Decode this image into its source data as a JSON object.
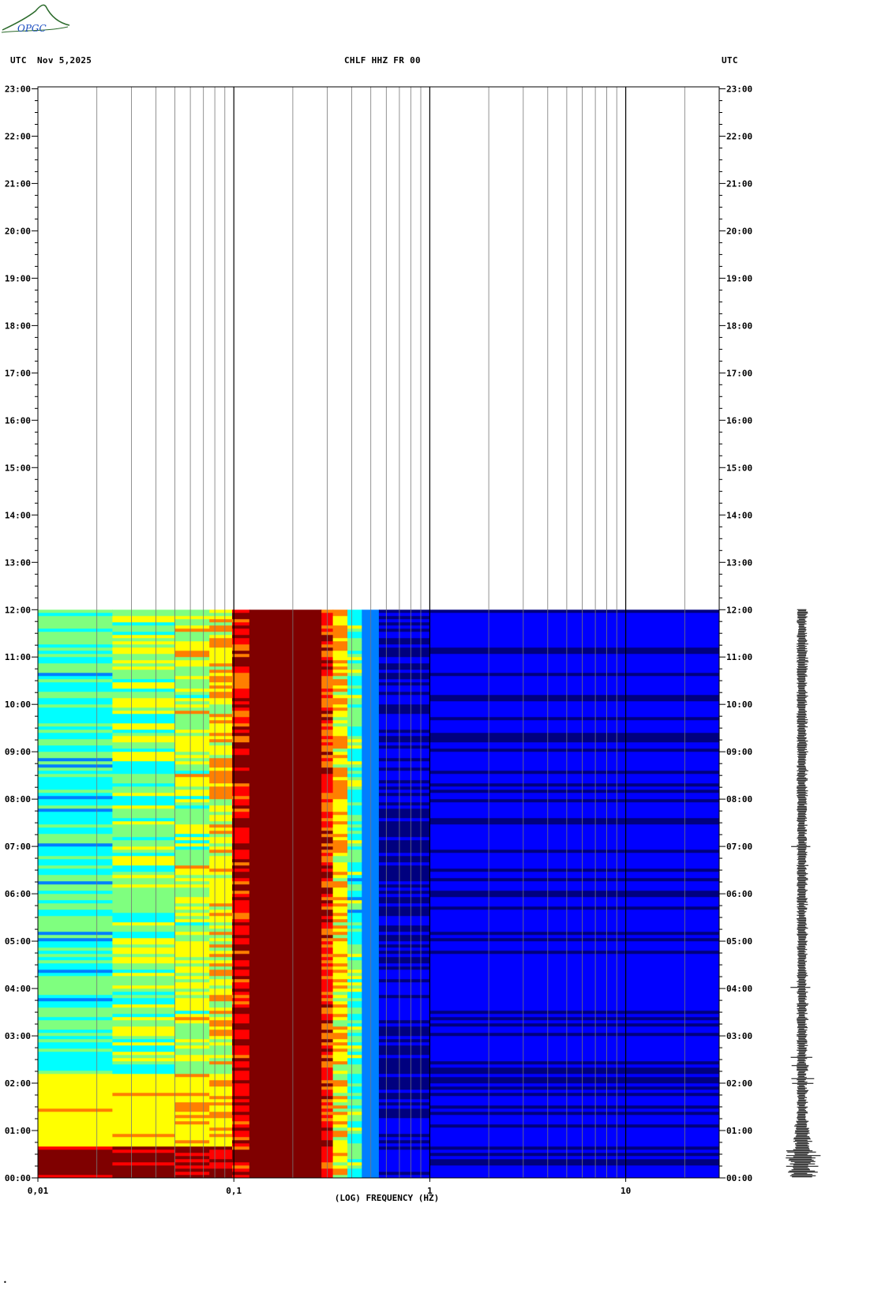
{
  "header": {
    "tz_left": "UTC",
    "date": "Nov 5,2025",
    "station": "CHLF HHZ FR 00",
    "tz_right": "UTC"
  },
  "logo": {
    "text": "OPGC",
    "color": "#2a6a2a",
    "text_color": "#1a4cc0"
  },
  "chart_data": {
    "type": "heatmap",
    "title": "CHLF HHZ FR 00",
    "xlabel": "(LOG) FREQUENCY (HZ)",
    "ylabel": "",
    "x_scale": "log",
    "xlim": [
      0.01,
      30
    ],
    "x_ticks": [
      {
        "value": 0.01,
        "label": "0,01"
      },
      {
        "value": 0.1,
        "label": "0,1"
      },
      {
        "value": 1,
        "label": "1"
      },
      {
        "value": 10,
        "label": "10"
      }
    ],
    "ylim_hours": [
      0,
      24
    ],
    "y_ticks": [
      "00:00",
      "01:00",
      "02:00",
      "03:00",
      "04:00",
      "05:00",
      "06:00",
      "07:00",
      "08:00",
      "09:00",
      "10:00",
      "11:00",
      "12:00",
      "13:00",
      "14:00",
      "15:00",
      "16:00",
      "17:00",
      "18:00",
      "19:00",
      "20:00",
      "21:00",
      "22:00",
      "23:00"
    ],
    "data_until_hour": 12,
    "colormap": [
      "#00007f",
      "#0000ff",
      "#007fff",
      "#00ffff",
      "#7fff7f",
      "#ffff00",
      "#ff7f00",
      "#ff0000",
      "#7f0000"
    ],
    "bands": [
      {
        "f_min": 0.01,
        "f_max": 0.024,
        "level": 0.42
      },
      {
        "f_min": 0.024,
        "f_max": 0.05,
        "level": 0.5
      },
      {
        "f_min": 0.05,
        "f_max": 0.075,
        "level": 0.56
      },
      {
        "f_min": 0.075,
        "f_max": 0.098,
        "level": 0.64
      },
      {
        "f_min": 0.098,
        "f_max": 0.12,
        "level": 0.9
      },
      {
        "f_min": 0.12,
        "f_max": 0.28,
        "level": 1.0
      },
      {
        "f_min": 0.28,
        "f_max": 0.32,
        "level": 0.85
      },
      {
        "f_min": 0.32,
        "f_max": 0.38,
        "level": 0.66
      },
      {
        "f_min": 0.38,
        "f_max": 0.45,
        "level": 0.45
      },
      {
        "f_min": 0.45,
        "f_max": 0.55,
        "level": 0.22
      },
      {
        "f_min": 0.55,
        "f_max": 1.0,
        "level": 0.06
      },
      {
        "f_min": 1.0,
        "f_max": 30,
        "level": 0.08
      }
    ],
    "events": [
      {
        "hour_start": 0.0,
        "hour_end": 0.7,
        "f_max": 0.098,
        "level": 0.95
      },
      {
        "hour_start": 0.7,
        "hour_end": 2.2,
        "f_max": 0.098,
        "level": 0.65
      }
    ],
    "grid": true
  }
}
